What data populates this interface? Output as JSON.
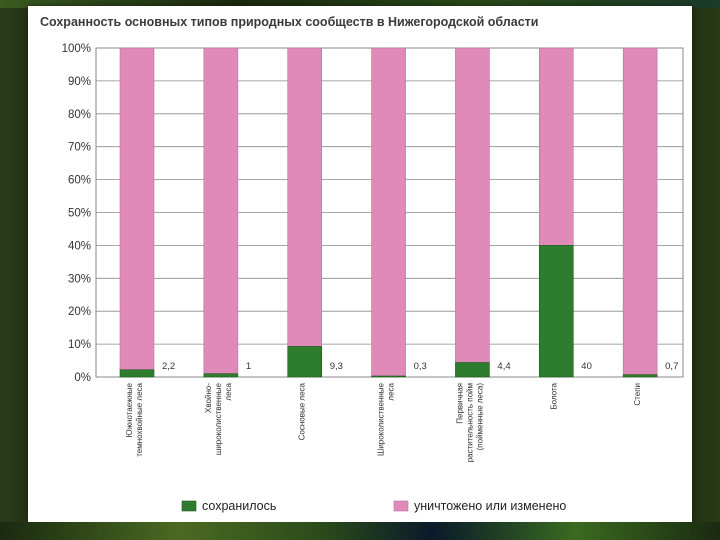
{
  "chart_data": {
    "type": "bar",
    "stacked": true,
    "title": "Сохранность основных типов природных сообществ в Нижегородской области",
    "xlabel": "",
    "ylabel": "",
    "ylim": [
      0,
      100
    ],
    "yticks": [
      "0%",
      "10%",
      "20%",
      "30%",
      "40%",
      "50%",
      "60%",
      "70%",
      "80%",
      "90%",
      "100%"
    ],
    "grid": true,
    "legend_position": "bottom",
    "categories": [
      [
        "Южнотаежные",
        "темнохвойные леса"
      ],
      [
        "Хвойно-",
        "широколиственные",
        "леса"
      ],
      [
        "Сосновые леса"
      ],
      [
        "Широколиственные",
        "леса"
      ],
      [
        "Первичная",
        "растительность пойм",
        "(пойменные леса)"
      ],
      [
        "Болота"
      ],
      [
        "Степи"
      ]
    ],
    "data_labels": [
      "2,2",
      "1",
      "9,3",
      "0,3",
      "4,4",
      "40",
      "0,7"
    ],
    "series": [
      {
        "name": "сохранилось",
        "color": "#2e7d2e",
        "values": [
          2.2,
          1,
          9.3,
          0.3,
          4.4,
          40,
          0.7
        ]
      },
      {
        "name": "уничтожено или изменено",
        "color": "#e08aba",
        "values": [
          97.8,
          99,
          90.7,
          99.7,
          95.6,
          60,
          99.3
        ]
      }
    ]
  }
}
